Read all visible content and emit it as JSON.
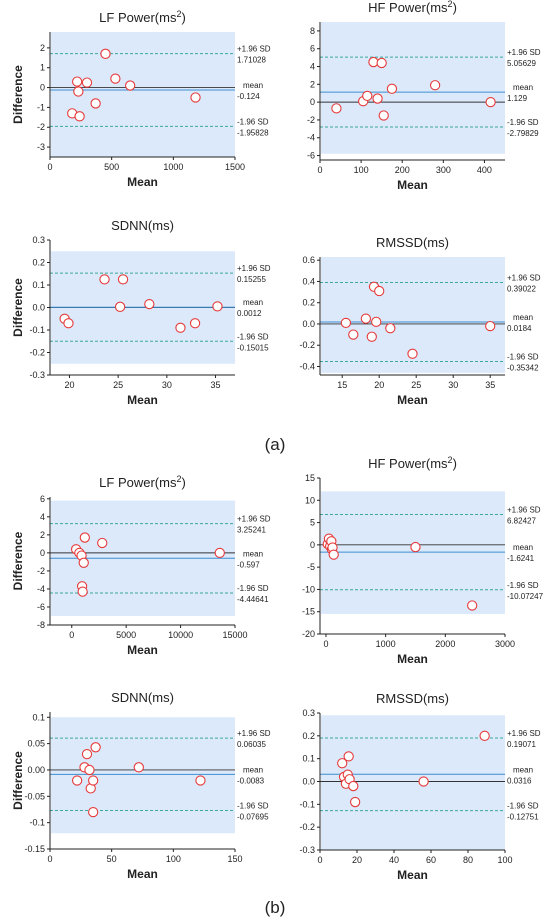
{
  "figure": {
    "labels": {
      "a": "(a)",
      "b": "(b)"
    }
  },
  "chart_data": [
    {
      "type": "scatter",
      "group": "a",
      "title": "LF Power(ms",
      "title_sup": "2",
      "title_end": ")",
      "xlabel": "Mean",
      "ylabel": "Difference",
      "xlim": [
        0,
        1500
      ],
      "ylim": [
        -3.5,
        2.8
      ],
      "xticks": [
        0,
        500,
        1000,
        1500
      ],
      "yticks": [
        -3,
        -2,
        -1,
        0,
        1,
        2
      ],
      "band": [
        -3.5,
        2.8
      ],
      "upper": {
        "label": "+1.96 SD",
        "value": 1.71028
      },
      "mean": {
        "label": "mean",
        "value": -0.124
      },
      "lower": {
        "label": "-1.96 SD",
        "value": -1.95828
      },
      "points": [
        [
          180,
          -1.3
        ],
        [
          220,
          0.3
        ],
        [
          230,
          -0.2
        ],
        [
          240,
          -1.45
        ],
        [
          300,
          0.25
        ],
        [
          370,
          -0.8
        ],
        [
          450,
          1.7
        ],
        [
          530,
          0.45
        ],
        [
          650,
          0.1
        ],
        [
          1180,
          -0.5
        ]
      ]
    },
    {
      "type": "scatter",
      "group": "a",
      "title": "HF Power(ms",
      "title_sup": "2",
      "title_end": ")",
      "xlabel": "Mean",
      "ylabel": "",
      "xlim": [
        0,
        450
      ],
      "ylim": [
        -6.5,
        9
      ],
      "xticks": [
        0,
        100,
        200,
        300,
        400
      ],
      "yticks": [
        -6,
        -4,
        -2,
        0,
        2,
        4,
        6,
        8
      ],
      "band": [
        -5.8,
        9
      ],
      "upper": {
        "label": "+1.96 SD",
        "value": 5.05629
      },
      "mean": {
        "label": "mean",
        "value": 1.129
      },
      "lower": {
        "label": "-1.96 SD",
        "value": -2.79829
      },
      "points": [
        [
          40,
          -0.7
        ],
        [
          105,
          0.1
        ],
        [
          115,
          0.7
        ],
        [
          130,
          4.5
        ],
        [
          140,
          0.4
        ],
        [
          150,
          4.4
        ],
        [
          155,
          -1.5
        ],
        [
          175,
          1.5
        ],
        [
          280,
          1.9
        ],
        [
          415,
          0.0
        ]
      ]
    },
    {
      "type": "scatter",
      "group": "a",
      "title": "SDNN(ms)",
      "title_sup": "",
      "title_end": "",
      "xlabel": "Mean",
      "ylabel": "Difference",
      "xlim": [
        18,
        37
      ],
      "ylim": [
        -0.3,
        0.3
      ],
      "xticks": [
        20,
        25,
        30,
        35
      ],
      "yticks": [
        -0.3,
        -0.2,
        -0.1,
        0.0,
        0.1,
        0.2,
        0.3
      ],
      "band": [
        -0.25,
        0.25
      ],
      "upper": {
        "label": "+1.96 SD",
        "value": 0.15255
      },
      "mean": {
        "label": "mean",
        "value": 0.0012
      },
      "lower": {
        "label": "-1.96 SD",
        "value": -0.15015
      },
      "points": [
        [
          19.5,
          -0.05
        ],
        [
          19.9,
          -0.07
        ],
        [
          23.6,
          0.125
        ],
        [
          25.2,
          0.003
        ],
        [
          25.5,
          0.125
        ],
        [
          28.2,
          0.015
        ],
        [
          31.4,
          -0.09
        ],
        [
          32.9,
          -0.07
        ],
        [
          35.2,
          0.005
        ]
      ]
    },
    {
      "type": "scatter",
      "group": "a",
      "title": "RMSSD(ms)",
      "title_sup": "",
      "title_end": "",
      "xlabel": "Mean",
      "ylabel": "",
      "xlim": [
        12,
        37
      ],
      "ylim": [
        -0.48,
        0.63
      ],
      "xticks": [
        15,
        20,
        25,
        30,
        35
      ],
      "yticks": [
        -0.4,
        -0.2,
        0.0,
        0.2,
        0.4,
        0.6
      ],
      "band": [
        -0.46,
        0.63
      ],
      "upper": {
        "label": "+1.96 SD",
        "value": 0.39022
      },
      "mean": {
        "label": "mean",
        "value": 0.0184
      },
      "lower": {
        "label": "-1.96 SD",
        "value": -0.35342
      },
      "points": [
        [
          15.5,
          0.01
        ],
        [
          16.5,
          -0.1
        ],
        [
          18.2,
          0.05
        ],
        [
          19.0,
          -0.12
        ],
        [
          19.3,
          0.35
        ],
        [
          19.6,
          0.02
        ],
        [
          20.0,
          0.31
        ],
        [
          21.5,
          -0.04
        ],
        [
          24.5,
          -0.28
        ],
        [
          35.0,
          -0.02
        ]
      ]
    },
    {
      "type": "scatter",
      "group": "b",
      "title": "LF Power(ms",
      "title_sup": "2",
      "title_end": ")",
      "xlabel": "Mean",
      "ylabel": "Difference",
      "xlim": [
        -2000,
        15000
      ],
      "ylim": [
        -8,
        6.2
      ],
      "xticks": [
        0,
        5000,
        10000,
        15000
      ],
      "yticks": [
        -8,
        -6,
        -4,
        -2,
        0,
        2,
        4,
        6
      ],
      "band": [
        -7,
        5.8
      ],
      "upper": {
        "label": "+1.96 SD",
        "value": 3.25241
      },
      "mean": {
        "label": "mean",
        "value": -0.597
      },
      "lower": {
        "label": "-1.96 SD",
        "value": -4.44641
      },
      "points": [
        [
          400,
          0.4
        ],
        [
          700,
          0.0
        ],
        [
          900,
          -0.3
        ],
        [
          950,
          -3.7
        ],
        [
          1000,
          -4.3
        ],
        [
          1100,
          -1.1
        ],
        [
          1200,
          1.7
        ],
        [
          2800,
          1.1
        ],
        [
          13600,
          0.0
        ]
      ]
    },
    {
      "type": "scatter",
      "group": "b",
      "title": "HF Power(ms",
      "title_sup": "2",
      "title_end": ")",
      "xlabel": "Mean",
      "ylabel": "",
      "xlim": [
        -100,
        3000
      ],
      "ylim": [
        -20,
        15
      ],
      "xticks": [
        0,
        1000,
        2000,
        3000
      ],
      "yticks": [
        -20,
        -15,
        -10,
        -5,
        0,
        5,
        10,
        15
      ],
      "band": [
        -15.5,
        12
      ],
      "upper": {
        "label": "+1.96 SD",
        "value": 6.82427
      },
      "mean": {
        "label": "mean",
        "value": -1.6241
      },
      "lower": {
        "label": "-1.96 SD",
        "value": -10.07247
      },
      "points": [
        [
          30,
          0.2
        ],
        [
          50,
          1.4
        ],
        [
          70,
          -0.3
        ],
        [
          90,
          0.8
        ],
        [
          100,
          -1.0
        ],
        [
          110,
          -0.6
        ],
        [
          130,
          -2.2
        ],
        [
          1500,
          -0.5
        ],
        [
          2450,
          -13.6
        ]
      ]
    },
    {
      "type": "scatter",
      "group": "b",
      "title": "SDNN(ms)",
      "title_sup": "",
      "title_end": "",
      "xlabel": "Mean",
      "ylabel": "Difference",
      "xlim": [
        0,
        150
      ],
      "ylim": [
        -0.15,
        0.11
      ],
      "xticks": [
        0,
        50,
        100,
        150
      ],
      "yticks": [
        -0.15,
        -0.1,
        -0.05,
        0.0,
        0.05,
        0.1
      ],
      "band": [
        -0.12,
        0.1
      ],
      "upper": {
        "label": "+1.96 SD",
        "value": 0.06035
      },
      "mean": {
        "label": "mean",
        "value": -0.0083
      },
      "lower": {
        "label": "-1.96 SD",
        "value": -0.07695
      },
      "points": [
        [
          22,
          -0.02
        ],
        [
          28,
          0.005
        ],
        [
          30,
          0.03
        ],
        [
          32,
          0.0
        ],
        [
          33,
          -0.035
        ],
        [
          35,
          -0.02
        ],
        [
          35,
          -0.08
        ],
        [
          37,
          0.043
        ],
        [
          72,
          0.005
        ],
        [
          122,
          -0.02
        ]
      ]
    },
    {
      "type": "scatter",
      "group": "b",
      "title": "RMSSD(ms)",
      "title_sup": "",
      "title_end": "",
      "xlabel": "Mean",
      "ylabel": "",
      "xlim": [
        0,
        100
      ],
      "ylim": [
        -0.3,
        0.3
      ],
      "xticks": [
        0,
        20,
        40,
        60,
        80,
        100
      ],
      "yticks": [
        -0.3,
        -0.2,
        -0.1,
        0.0,
        0.1,
        0.2,
        0.3
      ],
      "band": [
        -0.3,
        0.29
      ],
      "upper": {
        "label": "+1.96 SD",
        "value": 0.19071
      },
      "mean": {
        "label": "mean",
        "value": 0.0316
      },
      "lower": {
        "label": "-1.96 SD",
        "value": -0.12751
      },
      "points": [
        [
          12,
          0.08
        ],
        [
          13,
          0.02
        ],
        [
          14,
          -0.01
        ],
        [
          15,
          0.03
        ],
        [
          15.5,
          0.11
        ],
        [
          16,
          0.01
        ],
        [
          18,
          -0.02
        ],
        [
          19,
          -0.09
        ],
        [
          56,
          0.0
        ],
        [
          89,
          0.2
        ]
      ]
    }
  ],
  "colors": {
    "band": "#dbe9fb",
    "limit": "#3aa89a",
    "mean_line": "#3d8fd1",
    "zero": "#333333",
    "point": "#e63a3a"
  }
}
